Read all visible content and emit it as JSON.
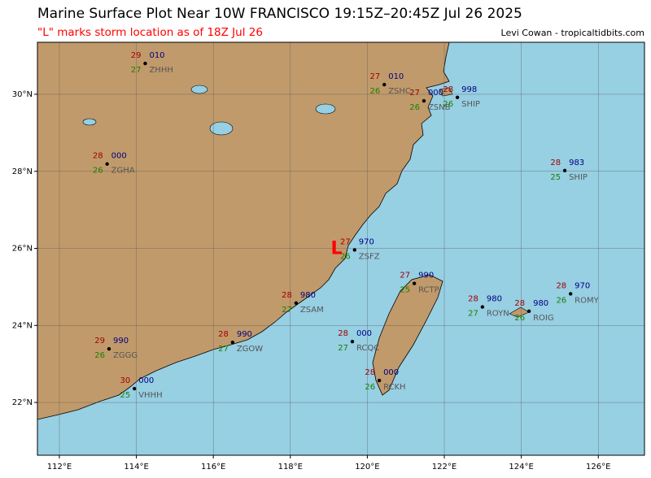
{
  "map": {
    "title": "Marine Surface Plot Near 10W FRANCISCO 19:15Z–20:45Z Jul 26 2025",
    "subtitle": "\"L\" marks storm location as of 18Z Jul 26",
    "credit": "Levi Cowan - tropicaltidbits.com",
    "lon_range": [
      111.43,
      127.2
    ],
    "lat_range": [
      20.63,
      31.35
    ],
    "xticks": [
      {
        "value": 112,
        "label": "112°E"
      },
      {
        "value": 114,
        "label": "114°E"
      },
      {
        "value": 116,
        "label": "116°E"
      },
      {
        "value": 118,
        "label": "118°E"
      },
      {
        "value": 120,
        "label": "120°E"
      },
      {
        "value": 122,
        "label": "122°E"
      },
      {
        "value": 124,
        "label": "124°E"
      },
      {
        "value": 126,
        "label": "126°E"
      }
    ],
    "yticks": [
      {
        "value": 22,
        "label": "22°N"
      },
      {
        "value": 24,
        "label": "24°N"
      },
      {
        "value": 26,
        "label": "26°N"
      },
      {
        "value": 28,
        "label": "28°N"
      },
      {
        "value": 30,
        "label": "30°N"
      }
    ],
    "grid": true,
    "storm": {
      "label": "L",
      "lon": 119.2,
      "lat": 25.98,
      "color": "#ff0000"
    },
    "stations": [
      {
        "id": "ZHHH",
        "temp": "29",
        "pressure": "010",
        "dewpoint": "27",
        "lon": 114.23,
        "lat": 30.8
      },
      {
        "id": "ZSHC",
        "temp": "27",
        "pressure": "010",
        "dewpoint": "26",
        "lon": 120.44,
        "lat": 30.25
      },
      {
        "id": "ZSNB",
        "temp": "27",
        "pressure": "000",
        "dewpoint": "26",
        "lon": 121.47,
        "lat": 29.83
      },
      {
        "id": "SHIP",
        "temp": "28",
        "pressure": "998",
        "dewpoint": "26",
        "lon": 122.34,
        "lat": 29.92
      },
      {
        "id": "ZGHA",
        "temp": "28",
        "pressure": "000",
        "dewpoint": "26",
        "lon": 113.24,
        "lat": 28.19
      },
      {
        "id": "SHIP",
        "temp": "28",
        "pressure": "983",
        "dewpoint": "25",
        "lon": 125.13,
        "lat": 28.02
      },
      {
        "id": "ZSFZ",
        "temp": "27",
        "pressure": "970",
        "dewpoint": "26",
        "lon": 119.67,
        "lat": 25.96
      },
      {
        "id": "RCTP",
        "temp": "27",
        "pressure": "990",
        "dewpoint": "25",
        "lon": 121.22,
        "lat": 25.09
      },
      {
        "id": "ZSAM",
        "temp": "28",
        "pressure": "980",
        "dewpoint": "27",
        "lon": 118.15,
        "lat": 24.58
      },
      {
        "id": "ROYN",
        "temp": "28",
        "pressure": "980",
        "dewpoint": "27",
        "lon": 122.99,
        "lat": 24.48
      },
      {
        "id": "ROIG",
        "temp": "28",
        "pressure": "980",
        "dewpoint": "26",
        "lon": 124.2,
        "lat": 24.37
      },
      {
        "id": "ROMY",
        "temp": "28",
        "pressure": "970",
        "dewpoint": "26",
        "lon": 125.28,
        "lat": 24.82
      },
      {
        "id": "ZGGG",
        "temp": "29",
        "pressure": "990",
        "dewpoint": "26",
        "lon": 113.29,
        "lat": 23.39
      },
      {
        "id": "ZGOW",
        "temp": "28",
        "pressure": "990",
        "dewpoint": "27",
        "lon": 116.5,
        "lat": 23.56
      },
      {
        "id": "RCQC",
        "temp": "28",
        "pressure": "000",
        "dewpoint": "27",
        "lon": 119.61,
        "lat": 23.58
      },
      {
        "id": "RCKH",
        "temp": "28",
        "pressure": "000",
        "dewpoint": "26",
        "lon": 120.31,
        "lat": 22.57
      },
      {
        "id": "VHHH",
        "temp": "30",
        "pressure": "000",
        "dewpoint": "25",
        "lon": 113.95,
        "lat": 22.36
      }
    ]
  }
}
